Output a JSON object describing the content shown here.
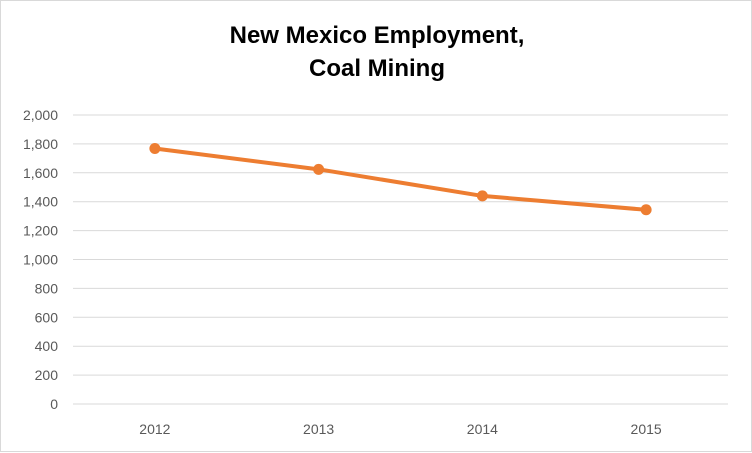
{
  "chart_data": {
    "type": "line",
    "title_lines": [
      "New Mexico Employment,",
      "Coal Mining"
    ],
    "categories": [
      "2012",
      "2013",
      "2014",
      "2015"
    ],
    "series": [
      {
        "values": [
          1768,
          1624,
          1440,
          1344
        ],
        "color": "#ED7D31"
      }
    ],
    "yticks": [
      "0",
      "200",
      "400",
      "600",
      "800",
      "1,000",
      "1,200",
      "1,400",
      "1,600",
      "1,800",
      "2,000"
    ],
    "ylim": [
      0,
      2000
    ],
    "grid": true,
    "markers": true
  }
}
